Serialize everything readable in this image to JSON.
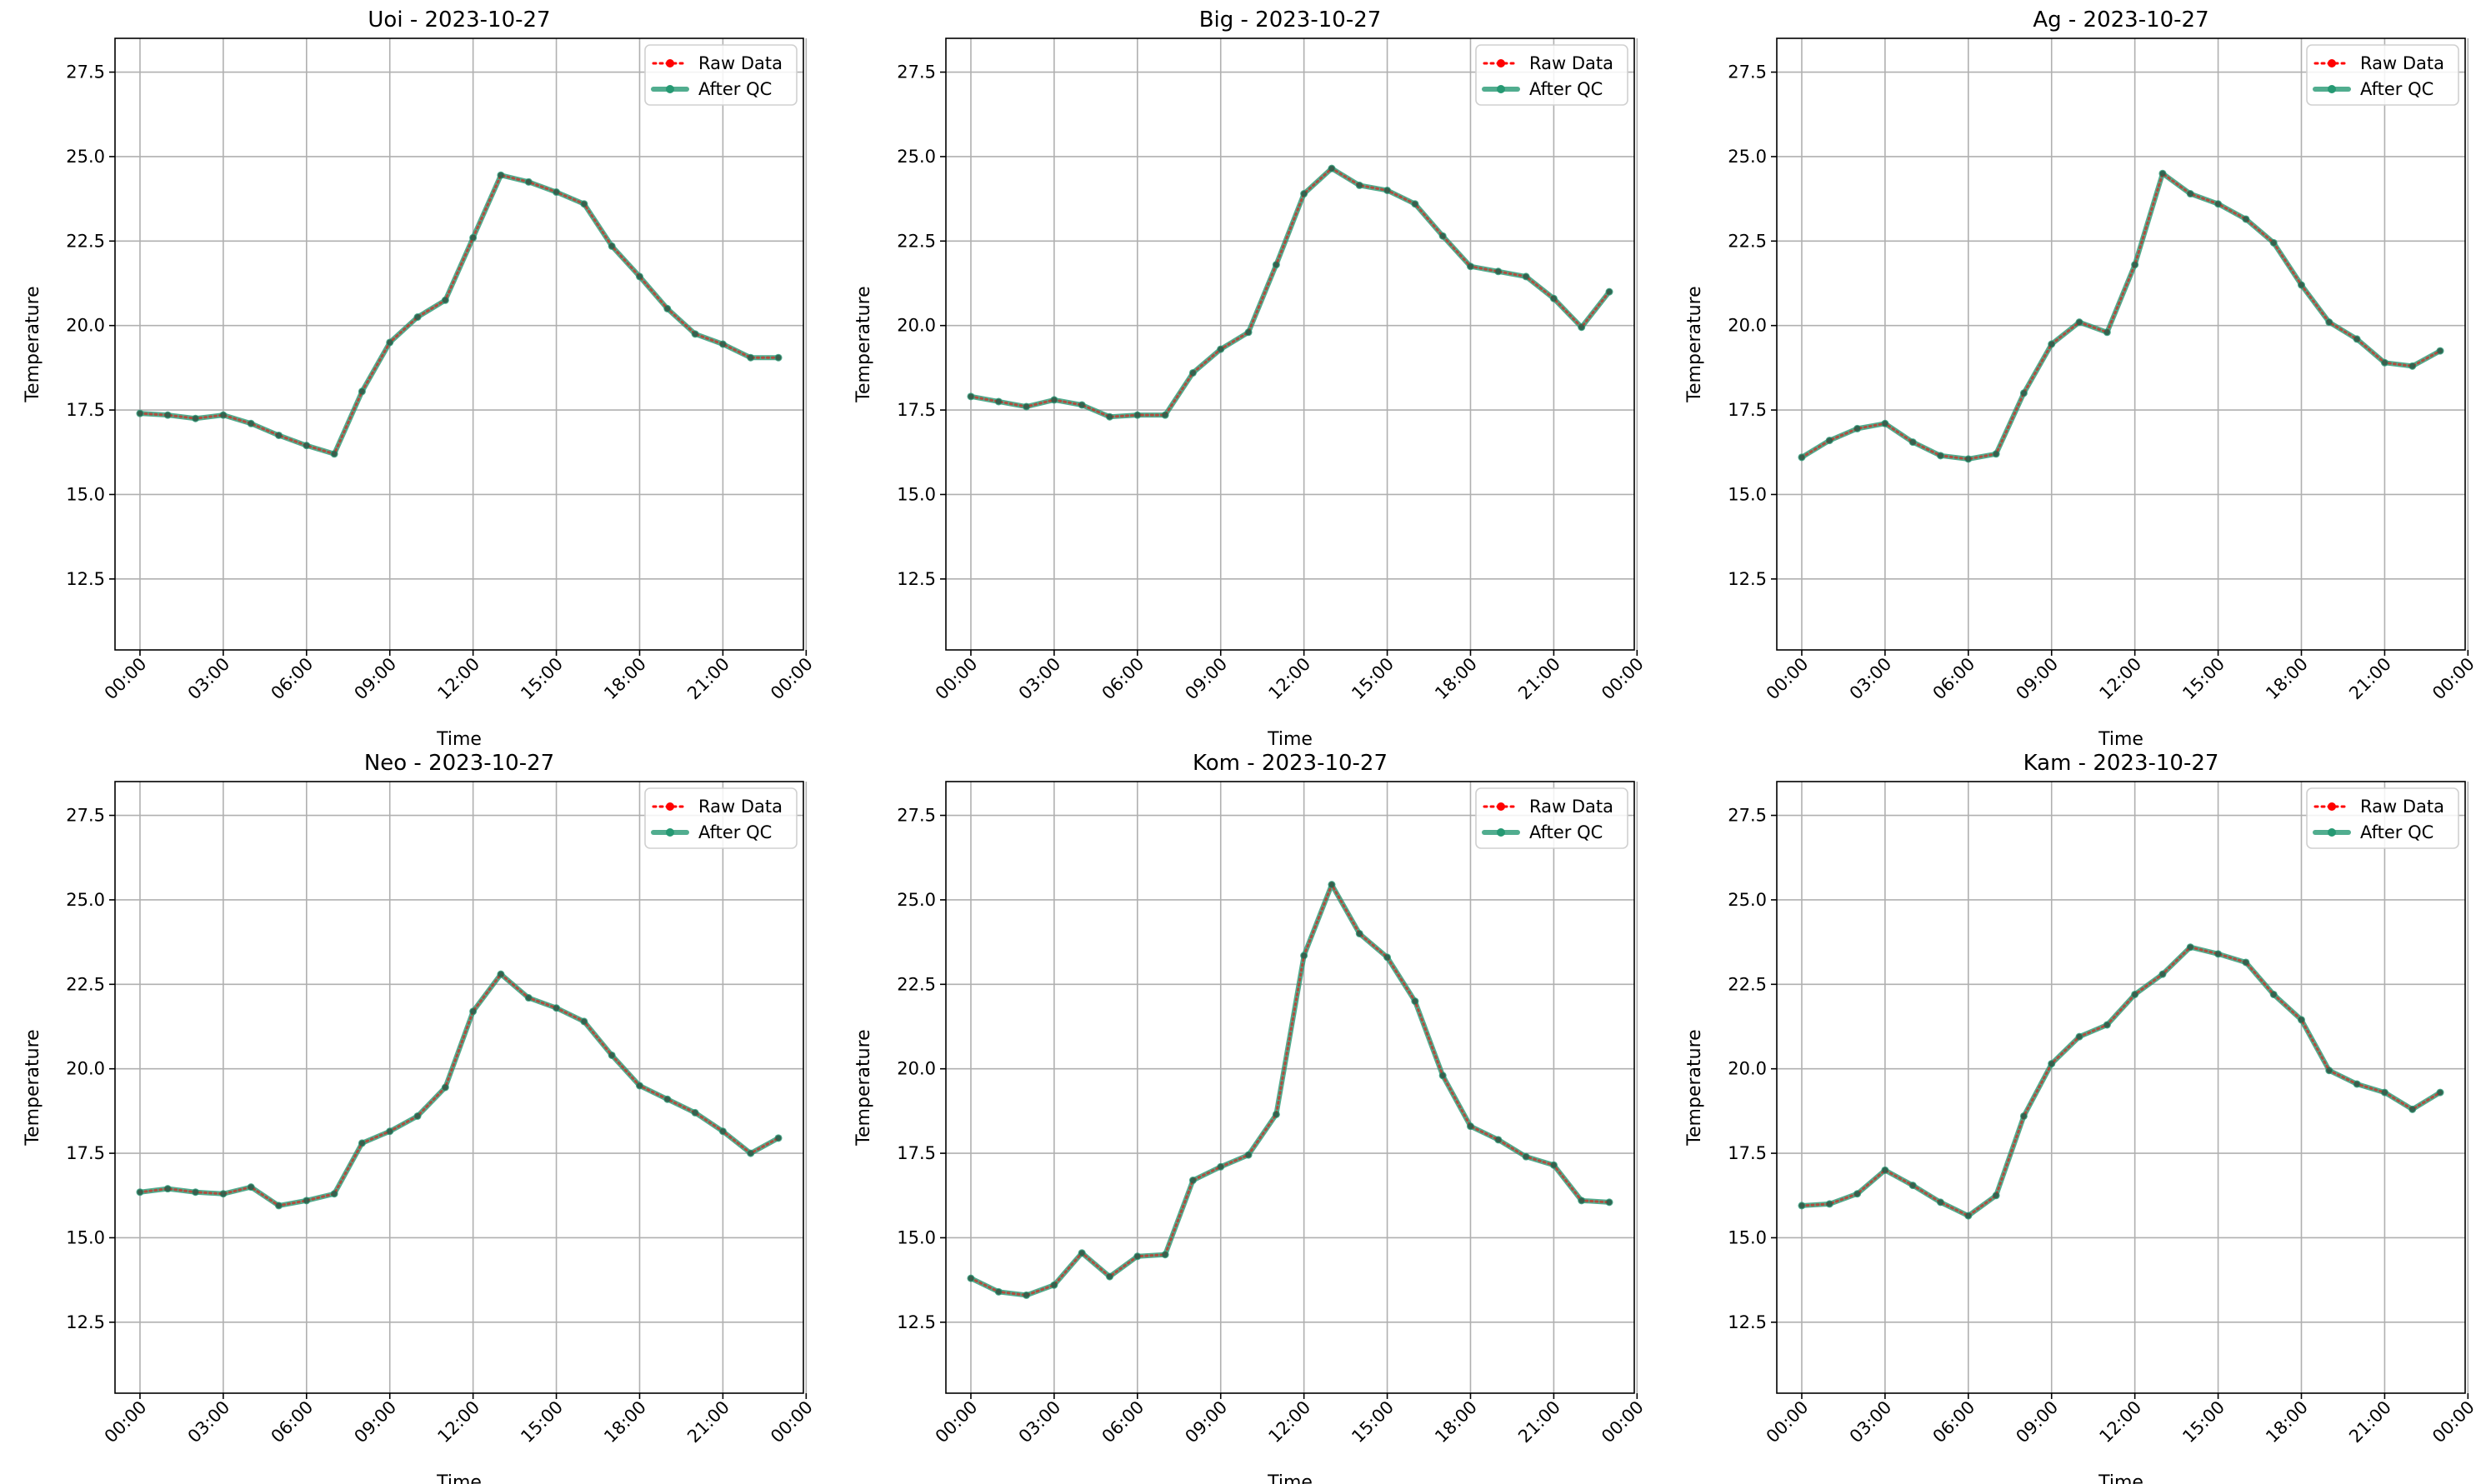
{
  "chart_data": [
    {
      "type": "line",
      "title": "Uoi - 2023-10-27",
      "xlabel": "Time",
      "ylabel": "Temperature",
      "ylim": [
        10.4,
        28.5
      ],
      "yticks": [
        "12.5",
        "15.0",
        "17.5",
        "20.0",
        "22.5",
        "25.0",
        "27.5"
      ],
      "xlim": [
        -0.9,
        23.9
      ],
      "xticks": [
        "00:00",
        "03:00",
        "06:00",
        "09:00",
        "12:00",
        "15:00",
        "18:00",
        "21:00",
        "00:00"
      ],
      "grid": true,
      "legend_position": "top-right",
      "x": [
        "00:00",
        "01:00",
        "02:00",
        "03:00",
        "04:00",
        "05:00",
        "06:00",
        "07:00",
        "08:00",
        "09:00",
        "10:00",
        "11:00",
        "12:00",
        "13:00",
        "14:00",
        "15:00",
        "16:00",
        "17:00",
        "18:00",
        "19:00",
        "20:00",
        "21:00",
        "22:00",
        "23:00"
      ],
      "series": [
        {
          "name": "Raw Data",
          "color": "#ff0000",
          "style": "dotted",
          "values": [
            17.4,
            17.35,
            17.25,
            17.35,
            17.1,
            16.75,
            16.45,
            16.2,
            18.05,
            19.5,
            20.25,
            20.75,
            22.6,
            24.45,
            24.25,
            23.95,
            23.6,
            22.35,
            21.45,
            20.5,
            19.75,
            19.45,
            19.05,
            19.05
          ]
        },
        {
          "name": "After QC",
          "color": "#269973",
          "style": "solid",
          "values": [
            17.4,
            17.35,
            17.25,
            17.35,
            17.1,
            16.75,
            16.45,
            16.2,
            18.05,
            19.5,
            20.25,
            20.75,
            22.6,
            24.45,
            24.25,
            23.95,
            23.6,
            22.35,
            21.45,
            20.5,
            19.75,
            19.45,
            19.05,
            19.05
          ]
        }
      ]
    },
    {
      "type": "line",
      "title": "Big - 2023-10-27",
      "xlabel": "Time",
      "ylabel": "Temperature",
      "ylim": [
        10.4,
        28.5
      ],
      "yticks": [
        "12.5",
        "15.0",
        "17.5",
        "20.0",
        "22.5",
        "25.0",
        "27.5"
      ],
      "xlim": [
        -0.9,
        23.9
      ],
      "xticks": [
        "00:00",
        "03:00",
        "06:00",
        "09:00",
        "12:00",
        "15:00",
        "18:00",
        "21:00",
        "00:00"
      ],
      "grid": true,
      "legend_position": "top-right",
      "x": [
        "00:00",
        "01:00",
        "02:00",
        "03:00",
        "04:00",
        "05:00",
        "06:00",
        "07:00",
        "08:00",
        "09:00",
        "10:00",
        "11:00",
        "12:00",
        "13:00",
        "14:00",
        "15:00",
        "16:00",
        "17:00",
        "18:00",
        "19:00",
        "20:00",
        "21:00",
        "22:00",
        "23:00"
      ],
      "series": [
        {
          "name": "Raw Data",
          "color": "#ff0000",
          "style": "dotted",
          "values": [
            17.9,
            17.75,
            17.6,
            17.8,
            17.65,
            17.3,
            17.35,
            17.35,
            18.6,
            19.3,
            19.8,
            21.8,
            23.9,
            24.65,
            24.15,
            24.0,
            23.6,
            22.65,
            21.75,
            21.6,
            21.45,
            20.8,
            19.95,
            21.0
          ]
        },
        {
          "name": "After QC",
          "color": "#269973",
          "style": "solid",
          "values": [
            17.9,
            17.75,
            17.6,
            17.8,
            17.65,
            17.3,
            17.35,
            17.35,
            18.6,
            19.3,
            19.8,
            21.8,
            23.9,
            24.65,
            24.15,
            24.0,
            23.6,
            22.65,
            21.75,
            21.6,
            21.45,
            20.8,
            19.95,
            21.0
          ]
        }
      ]
    },
    {
      "type": "line",
      "title": "Ag - 2023-10-27",
      "xlabel": "Time",
      "ylabel": "Temperature",
      "ylim": [
        10.4,
        28.5
      ],
      "yticks": [
        "12.5",
        "15.0",
        "17.5",
        "20.0",
        "22.5",
        "25.0",
        "27.5"
      ],
      "xlim": [
        -0.9,
        23.9
      ],
      "xticks": [
        "00:00",
        "03:00",
        "06:00",
        "09:00",
        "12:00",
        "15:00",
        "18:00",
        "21:00",
        "00:00"
      ],
      "grid": true,
      "legend_position": "top-right",
      "x": [
        "00:00",
        "01:00",
        "02:00",
        "03:00",
        "04:00",
        "05:00",
        "06:00",
        "07:00",
        "08:00",
        "09:00",
        "10:00",
        "11:00",
        "12:00",
        "13:00",
        "14:00",
        "15:00",
        "16:00",
        "17:00",
        "18:00",
        "19:00",
        "20:00",
        "21:00",
        "22:00",
        "23:00"
      ],
      "series": [
        {
          "name": "Raw Data",
          "color": "#ff0000",
          "style": "dotted",
          "values": [
            16.1,
            16.6,
            16.95,
            17.1,
            16.55,
            16.15,
            16.05,
            16.2,
            18.0,
            19.45,
            20.1,
            19.8,
            21.8,
            24.5,
            23.9,
            23.6,
            23.15,
            22.45,
            21.2,
            20.1,
            19.6,
            18.9,
            18.8,
            19.25
          ]
        },
        {
          "name": "After QC",
          "color": "#269973",
          "style": "solid",
          "values": [
            16.1,
            16.6,
            16.95,
            17.1,
            16.55,
            16.15,
            16.05,
            16.2,
            18.0,
            19.45,
            20.1,
            19.8,
            21.8,
            24.5,
            23.9,
            23.6,
            23.15,
            22.45,
            21.2,
            20.1,
            19.6,
            18.9,
            18.8,
            19.25
          ]
        }
      ]
    },
    {
      "type": "line",
      "title": "Neo - 2023-10-27",
      "xlabel": "Time",
      "ylabel": "Temperature",
      "ylim": [
        10.4,
        28.5
      ],
      "yticks": [
        "12.5",
        "15.0",
        "17.5",
        "20.0",
        "22.5",
        "25.0",
        "27.5"
      ],
      "xlim": [
        -0.9,
        23.9
      ],
      "xticks": [
        "00:00",
        "03:00",
        "06:00",
        "09:00",
        "12:00",
        "15:00",
        "18:00",
        "21:00",
        "00:00"
      ],
      "grid": true,
      "legend_position": "top-right",
      "x": [
        "00:00",
        "01:00",
        "02:00",
        "03:00",
        "04:00",
        "05:00",
        "06:00",
        "07:00",
        "08:00",
        "09:00",
        "10:00",
        "11:00",
        "12:00",
        "13:00",
        "14:00",
        "15:00",
        "16:00",
        "17:00",
        "18:00",
        "19:00",
        "20:00",
        "21:00",
        "22:00",
        "23:00"
      ],
      "series": [
        {
          "name": "Raw Data",
          "color": "#ff0000",
          "style": "dotted",
          "values": [
            16.35,
            16.45,
            16.35,
            16.3,
            16.5,
            15.95,
            16.1,
            16.3,
            17.8,
            18.15,
            18.6,
            19.45,
            21.7,
            22.8,
            22.1,
            21.8,
            21.4,
            20.4,
            19.5,
            19.1,
            18.7,
            18.15,
            17.5,
            17.95
          ]
        },
        {
          "name": "After QC",
          "color": "#269973",
          "style": "solid",
          "values": [
            16.35,
            16.45,
            16.35,
            16.3,
            16.5,
            15.95,
            16.1,
            16.3,
            17.8,
            18.15,
            18.6,
            19.45,
            21.7,
            22.8,
            22.1,
            21.8,
            21.4,
            20.4,
            19.5,
            19.1,
            18.7,
            18.15,
            17.5,
            17.95
          ]
        }
      ]
    },
    {
      "type": "line",
      "title": "Kom - 2023-10-27",
      "xlabel": "Time",
      "ylabel": "Temperature",
      "ylim": [
        10.4,
        28.5
      ],
      "yticks": [
        "12.5",
        "15.0",
        "17.5",
        "20.0",
        "22.5",
        "25.0",
        "27.5"
      ],
      "xlim": [
        -0.9,
        23.9
      ],
      "xticks": [
        "00:00",
        "03:00",
        "06:00",
        "09:00",
        "12:00",
        "15:00",
        "18:00",
        "21:00",
        "00:00"
      ],
      "grid": true,
      "legend_position": "top-right",
      "x": [
        "00:00",
        "01:00",
        "02:00",
        "03:00",
        "04:00",
        "05:00",
        "06:00",
        "07:00",
        "08:00",
        "09:00",
        "10:00",
        "11:00",
        "12:00",
        "13:00",
        "14:00",
        "15:00",
        "16:00",
        "17:00",
        "18:00",
        "19:00",
        "20:00",
        "21:00",
        "22:00",
        "23:00"
      ],
      "series": [
        {
          "name": "Raw Data",
          "color": "#ff0000",
          "style": "dotted",
          "values": [
            13.8,
            13.4,
            13.3,
            13.6,
            14.55,
            13.85,
            14.45,
            14.5,
            16.7,
            17.1,
            17.45,
            18.65,
            23.35,
            25.45,
            24.0,
            23.3,
            22.0,
            19.8,
            18.3,
            17.9,
            17.4,
            17.15,
            16.1,
            16.05
          ]
        },
        {
          "name": "After QC",
          "color": "#269973",
          "style": "solid",
          "values": [
            13.8,
            13.4,
            13.3,
            13.6,
            14.55,
            13.85,
            14.45,
            14.5,
            16.7,
            17.1,
            17.45,
            18.65,
            23.35,
            25.45,
            24.0,
            23.3,
            22.0,
            19.8,
            18.3,
            17.9,
            17.4,
            17.15,
            16.1,
            16.05
          ]
        }
      ]
    },
    {
      "type": "line",
      "title": "Kam - 2023-10-27",
      "xlabel": "Time",
      "ylabel": "Temperature",
      "ylim": [
        10.4,
        28.5
      ],
      "yticks": [
        "12.5",
        "15.0",
        "17.5",
        "20.0",
        "22.5",
        "25.0",
        "27.5"
      ],
      "xlim": [
        -0.9,
        23.9
      ],
      "xticks": [
        "00:00",
        "03:00",
        "06:00",
        "09:00",
        "12:00",
        "15:00",
        "18:00",
        "21:00",
        "00:00"
      ],
      "grid": true,
      "legend_position": "top-right",
      "x": [
        "00:00",
        "01:00",
        "02:00",
        "03:00",
        "04:00",
        "05:00",
        "06:00",
        "07:00",
        "08:00",
        "09:00",
        "10:00",
        "11:00",
        "12:00",
        "13:00",
        "14:00",
        "15:00",
        "16:00",
        "17:00",
        "18:00",
        "19:00",
        "20:00",
        "21:00",
        "22:00",
        "23:00"
      ],
      "series": [
        {
          "name": "Raw Data",
          "color": "#ff0000",
          "style": "dotted",
          "values": [
            15.95,
            16.0,
            16.3,
            17.0,
            16.55,
            16.05,
            15.65,
            16.25,
            18.6,
            20.15,
            20.95,
            21.3,
            22.2,
            22.8,
            23.6,
            23.4,
            23.15,
            22.2,
            21.45,
            19.95,
            19.55,
            19.3,
            18.8,
            19.3
          ]
        },
        {
          "name": "After QC",
          "color": "#269973",
          "style": "solid",
          "values": [
            15.95,
            16.0,
            16.3,
            17.0,
            16.55,
            16.05,
            15.65,
            16.25,
            18.6,
            20.15,
            20.95,
            21.3,
            22.2,
            22.8,
            23.6,
            23.4,
            23.15,
            22.2,
            21.45,
            19.95,
            19.55,
            19.3,
            18.8,
            19.3
          ]
        }
      ]
    }
  ]
}
